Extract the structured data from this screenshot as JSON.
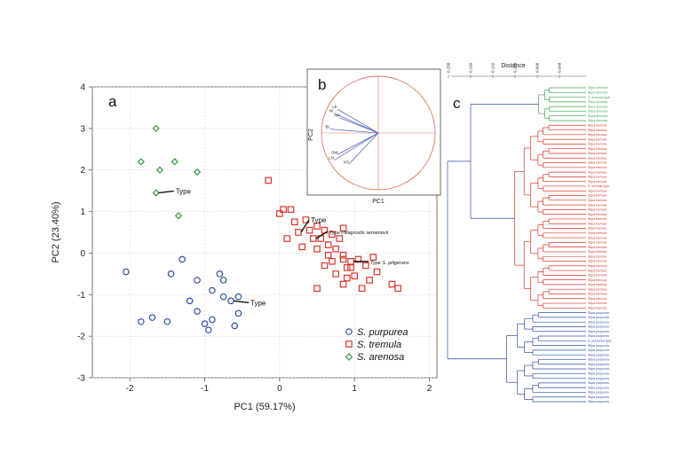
{
  "chart_data": [
    {
      "panel": "a",
      "type": "scatter",
      "xlabel": "PC1 (59.17%)",
      "ylabel": "PC2 (23.40%)",
      "xlim": [
        -2.5,
        2.1
      ],
      "ylim": [
        -3,
        4
      ],
      "xticks": [
        -2,
        -1,
        0,
        1,
        2
      ],
      "yticks": [
        -3,
        -2,
        -1,
        0,
        1,
        2,
        3,
        4
      ],
      "grid": true,
      "legend_position": "bottom-right",
      "series": [
        {
          "name": "S. purpurea",
          "color": "#2e4fa3",
          "marker": "circle",
          "points": [
            [
              -2.05,
              -0.45
            ],
            [
              -1.85,
              -1.65
            ],
            [
              -1.7,
              -1.55
            ],
            [
              -1.5,
              -1.65
            ],
            [
              -1.45,
              -0.5
            ],
            [
              -1.3,
              -0.15
            ],
            [
              -1.2,
              -1.15
            ],
            [
              -1.1,
              -1.4
            ],
            [
              -1.1,
              -0.65
            ],
            [
              -1.0,
              -1.7
            ],
            [
              -0.95,
              -1.85
            ],
            [
              -0.9,
              -0.9
            ],
            [
              -0.9,
              -1.6
            ],
            [
              -0.75,
              -0.65
            ],
            [
              -0.75,
              -1.05
            ],
            [
              -0.65,
              -1.15
            ],
            [
              -0.6,
              -1.75
            ],
            [
              -0.55,
              -1.45
            ],
            [
              -0.55,
              -1.05
            ],
            [
              -0.8,
              -0.5
            ]
          ]
        },
        {
          "name": "S. tremula",
          "color": "#d9352b",
          "marker": "square",
          "points": [
            [
              -0.15,
              1.75
            ],
            [
              0.0,
              0.95
            ],
            [
              0.05,
              1.05
            ],
            [
              0.15,
              1.05
            ],
            [
              0.1,
              0.35
            ],
            [
              0.2,
              0.75
            ],
            [
              0.25,
              0.5
            ],
            [
              0.3,
              0.15
            ],
            [
              0.35,
              0.8
            ],
            [
              0.4,
              0.55
            ],
            [
              0.45,
              0.35
            ],
            [
              0.5,
              0.65
            ],
            [
              0.5,
              0.1
            ],
            [
              0.55,
              0.35
            ],
            [
              0.6,
              0.55
            ],
            [
              0.65,
              0.2
            ],
            [
              0.7,
              0.45
            ],
            [
              0.7,
              -0.2
            ],
            [
              0.75,
              0.1
            ],
            [
              0.8,
              0.35
            ],
            [
              0.85,
              -0.05
            ],
            [
              0.9,
              -0.35
            ],
            [
              0.75,
              -0.5
            ],
            [
              0.95,
              -0.2
            ],
            [
              1.0,
              -0.55
            ],
            [
              1.05,
              -0.15
            ],
            [
              1.1,
              -0.85
            ],
            [
              1.15,
              -0.3
            ],
            [
              1.2,
              -0.65
            ],
            [
              1.25,
              -0.1
            ],
            [
              1.3,
              -0.45
            ],
            [
              0.6,
              -0.3
            ],
            [
              0.85,
              -0.75
            ],
            [
              0.85,
              -0.15
            ],
            [
              0.65,
              -0.05
            ],
            [
              1.5,
              -0.75
            ],
            [
              1.58,
              -0.85
            ],
            [
              0.85,
              0.6
            ],
            [
              0.5,
              -0.85
            ],
            [
              0.9,
              -0.6
            ],
            [
              0.95,
              -0.35
            ]
          ]
        },
        {
          "name": "S. arenosa",
          "color": "#2f9a3a",
          "marker": "diamond",
          "points": [
            [
              -1.65,
              3.0
            ],
            [
              -1.85,
              2.2
            ],
            [
              -1.6,
              2.0
            ],
            [
              -1.4,
              2.2
            ],
            [
              -1.1,
              1.95
            ],
            [
              -1.65,
              1.45
            ],
            [
              -1.35,
              0.9
            ]
          ]
        }
      ],
      "annotations": [
        {
          "text": "Type",
          "x": -1.65,
          "y": 1.45
        },
        {
          "text": "Type",
          "x": -0.65,
          "y": -1.15
        },
        {
          "text": "Type",
          "x": 0.25,
          "y": 0.5
        },
        {
          "text": "Type Plilagrostis semenovii",
          "x": 0.45,
          "y": 0.35
        },
        {
          "text": "Type S. piligerans",
          "x": 0.95,
          "y": -0.2
        }
      ]
    },
    {
      "panel": "b",
      "type": "loadings-circle",
      "xlabel": "PC1",
      "ylabel": "PC2",
      "vectors": [
        {
          "label": "W",
          "x": -0.78,
          "y": 0.35
        },
        {
          "label": "Lh",
          "x": -0.72,
          "y": 0.42
        },
        {
          "label": "Aw",
          "x": -0.68,
          "y": 0.27
        },
        {
          "label": "Bt",
          "x": -0.85,
          "y": 0.07
        },
        {
          "label": "SW",
          "x": -0.72,
          "y": -0.38
        },
        {
          "label": "LN",
          "x": -0.78,
          "y": -0.48
        },
        {
          "label": "LG",
          "x": -0.52,
          "y": -0.55
        }
      ]
    },
    {
      "panel": "c",
      "type": "dendrogram",
      "axis_title": "Distance",
      "ticks": [
        "0.048",
        "0.096",
        "0.144",
        "0.192",
        "0.240",
        "0.288"
      ],
      "clusters": [
        {
          "name": "S. arenosa",
          "color": "#3fa34d",
          "leaf_label": "Stipa arenosa",
          "type_label": "S. arenosa type",
          "count": 8
        },
        {
          "name": "S. tremula",
          "color": "#d9352b",
          "leaf_label": "Stipa tremula",
          "type_label": "S. tremula type",
          "count": 40
        },
        {
          "name": "S. purpurea",
          "color": "#2e4fa3",
          "leaf_label": "Stipa purpurea",
          "type_label": "S. purpurea type",
          "count": 20
        }
      ]
    }
  ],
  "panel_letters": {
    "a": "a",
    "b": "b",
    "c": "c"
  },
  "legend": [
    {
      "label": "S. purpurea"
    },
    {
      "label": "S. tremula"
    },
    {
      "label": "S. arenosa"
    }
  ]
}
